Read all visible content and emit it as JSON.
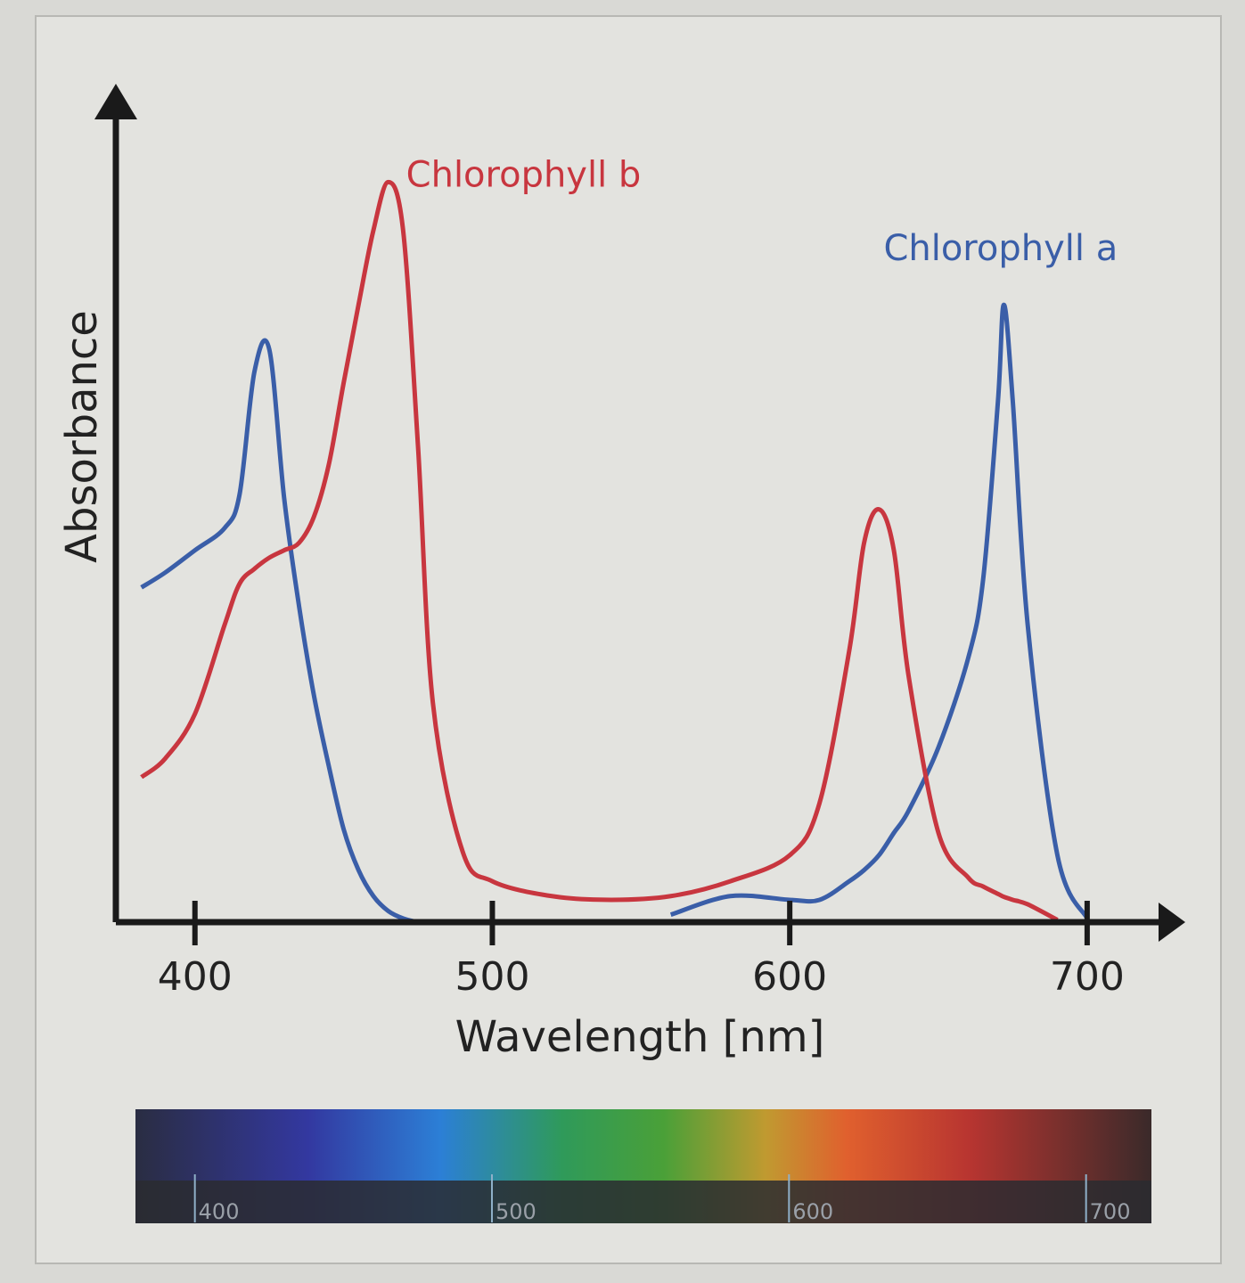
{
  "chart_data": {
    "type": "line",
    "xlabel": "Wavelength [nm]",
    "ylabel": "Absorbance",
    "x": [
      382,
      390,
      400,
      410,
      415,
      420,
      425,
      430,
      435,
      440,
      445,
      450,
      455,
      460,
      465,
      470,
      475,
      480,
      490,
      500,
      520,
      540,
      560,
      580,
      600,
      610,
      620,
      625,
      630,
      635,
      640,
      650,
      660,
      665,
      670,
      672,
      675,
      680,
      690,
      700
    ],
    "xlim": [
      380,
      730
    ],
    "xticks": [
      400,
      500,
      600,
      700
    ],
    "ylim": [
      0,
      1.12
    ],
    "series": [
      {
        "name": "Chlorophyll a",
        "color": "#3a5ea8",
        "values": [
          0.45,
          0.47,
          0.5,
          0.53,
          0.575,
          0.74,
          0.77,
          0.57,
          0.425,
          0.305,
          0.21,
          0.125,
          0.07,
          0.035,
          0.015,
          0.005,
          0,
          null,
          null,
          null,
          null,
          null,
          0.01,
          0.035,
          0.03,
          0.03,
          0.055,
          0.07,
          0.09,
          0.12,
          0.15,
          0.235,
          0.355,
          0.46,
          0.7,
          0.83,
          0.7,
          0.4,
          0.09,
          0.005
        ]
      },
      {
        "name": "Chlorophyll b",
        "color": "#c8363f",
        "values": [
          0.195,
          0.22,
          0.28,
          0.4,
          0.455,
          0.475,
          0.49,
          0.5,
          0.51,
          0.545,
          0.615,
          0.725,
          0.83,
          0.93,
          0.995,
          0.93,
          0.64,
          0.295,
          0.095,
          0.055,
          0.035,
          0.03,
          0.035,
          0.055,
          0.09,
          0.16,
          0.365,
          0.51,
          0.555,
          0.5,
          0.33,
          0.12,
          0.06,
          0.048,
          0.038,
          0.034,
          0.03,
          0.024,
          0.003,
          null
        ]
      }
    ],
    "spectrum": {
      "xlim": [
        380,
        722
      ],
      "xticks": [
        400,
        500,
        600,
        700
      ]
    }
  }
}
